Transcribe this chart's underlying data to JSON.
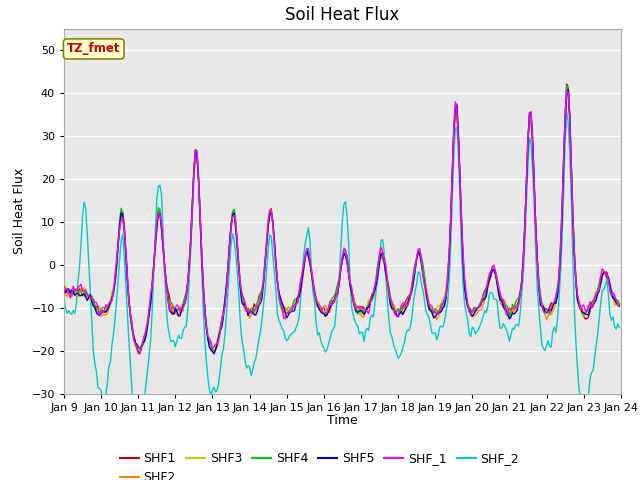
{
  "title": "Soil Heat Flux",
  "xlabel": "Time",
  "ylabel": "Soil Heat Flux",
  "ylim": [
    -30,
    55
  ],
  "yticks": [
    -30,
    -20,
    -10,
    0,
    10,
    20,
    30,
    40,
    50
  ],
  "xtick_labels": [
    "Jan 9",
    "Jan 10",
    "Jan 11",
    "Jan 12",
    "Jan 13",
    "Jan 14",
    "Jan 15",
    "Jan 16",
    "Jan 17",
    "Jan 18",
    "Jan 19",
    "Jan 20",
    "Jan 21",
    "Jan 22",
    "Jan 23",
    "Jan 24"
  ],
  "series_colors": {
    "SHF1": "#cc0000",
    "SHF2": "#ff8800",
    "SHF3": "#cccc00",
    "SHF4": "#00cc00",
    "SHF5": "#0000cc",
    "SHF_1": "#ff00ff",
    "SHF_2": "#00cccc"
  },
  "annotation_text": "TZ_fmet",
  "annotation_color": "#cc0000",
  "annotation_bg": "#ffffcc",
  "annotation_border": "#888800",
  "plot_bg": "#e8e8e8",
  "grid_color": "#ffffff",
  "title_fontsize": 12,
  "axis_label_fontsize": 9,
  "tick_fontsize": 8,
  "legend_fontsize": 9
}
